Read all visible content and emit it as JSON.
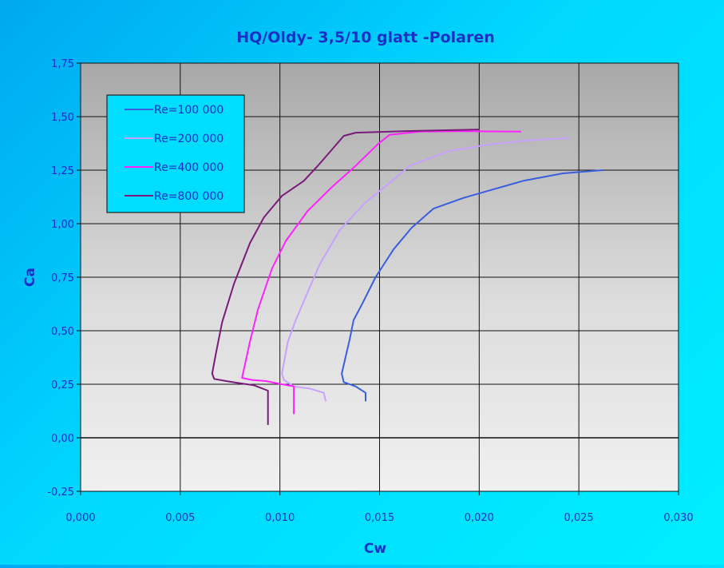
{
  "chart_data": {
    "type": "line",
    "title": "HQ/Oldy- 3,5/10 glatt -Polaren",
    "xlabel": "Cw",
    "ylabel": "Ca",
    "xlim": [
      0.0,
      0.03
    ],
    "ylim": [
      -0.25,
      1.75
    ],
    "x_ticks": [
      "0,000",
      "0,005",
      "0,010",
      "0,015",
      "0,020",
      "0,025",
      "0,030"
    ],
    "y_ticks": [
      "-0,25",
      "0,00",
      "0,25",
      "0,50",
      "0,75",
      "1,00",
      "1,25",
      "1,50",
      "1,75"
    ],
    "grid": true,
    "legend_position": "top-left",
    "series": [
      {
        "name": "Re=100 000",
        "color": "#3a5ee0",
        "points": [
          [
            0.0143,
            0.17
          ],
          [
            0.0143,
            0.21
          ],
          [
            0.0138,
            0.24
          ],
          [
            0.0132,
            0.26
          ],
          [
            0.0131,
            0.3
          ],
          [
            0.0133,
            0.38
          ],
          [
            0.0135,
            0.46
          ],
          [
            0.0137,
            0.55
          ],
          [
            0.0141,
            0.62
          ],
          [
            0.0148,
            0.75
          ],
          [
            0.0157,
            0.88
          ],
          [
            0.0166,
            0.98
          ],
          [
            0.0177,
            1.07
          ],
          [
            0.0192,
            1.12
          ],
          [
            0.0207,
            1.16
          ],
          [
            0.0222,
            1.2
          ],
          [
            0.0242,
            1.235
          ],
          [
            0.0262,
            1.25
          ]
        ]
      },
      {
        "name": "Re=200 000",
        "color": "#c8a0ff",
        "points": [
          [
            0.0123,
            0.17
          ],
          [
            0.0122,
            0.21
          ],
          [
            0.0115,
            0.23
          ],
          [
            0.0107,
            0.24
          ],
          [
            0.0102,
            0.27
          ],
          [
            0.0101,
            0.3
          ],
          [
            0.0104,
            0.45
          ],
          [
            0.0108,
            0.55
          ],
          [
            0.0113,
            0.66
          ],
          [
            0.012,
            0.81
          ],
          [
            0.013,
            0.97
          ],
          [
            0.0143,
            1.1
          ],
          [
            0.0155,
            1.19
          ],
          [
            0.0165,
            1.27
          ],
          [
            0.0185,
            1.34
          ],
          [
            0.0205,
            1.37
          ],
          [
            0.0225,
            1.39
          ],
          [
            0.0245,
            1.4
          ]
        ]
      },
      {
        "name": "Re=400 000",
        "color": "#ff22ff",
        "points": [
          [
            0.0107,
            0.11
          ],
          [
            0.0107,
            0.24
          ],
          [
            0.0101,
            0.25
          ],
          [
            0.0093,
            0.265
          ],
          [
            0.0086,
            0.27
          ],
          [
            0.0081,
            0.28
          ],
          [
            0.0085,
            0.45
          ],
          [
            0.0089,
            0.6
          ],
          [
            0.0096,
            0.79
          ],
          [
            0.0103,
            0.92
          ],
          [
            0.0114,
            1.06
          ],
          [
            0.0126,
            1.17
          ],
          [
            0.0138,
            1.27
          ],
          [
            0.0149,
            1.37
          ],
          [
            0.0155,
            1.415
          ],
          [
            0.017,
            1.43
          ],
          [
            0.019,
            1.432
          ],
          [
            0.0221,
            1.43
          ]
        ]
      },
      {
        "name": "Re=800 000",
        "color": "#7a1a7a",
        "points": [
          [
            0.0094,
            0.06
          ],
          [
            0.0094,
            0.22
          ],
          [
            0.0087,
            0.245
          ],
          [
            0.008,
            0.255
          ],
          [
            0.0073,
            0.265
          ],
          [
            0.0067,
            0.275
          ],
          [
            0.0066,
            0.3
          ],
          [
            0.0068,
            0.4
          ],
          [
            0.0071,
            0.54
          ],
          [
            0.0077,
            0.72
          ],
          [
            0.0085,
            0.91
          ],
          [
            0.0092,
            1.03
          ],
          [
            0.0101,
            1.13
          ],
          [
            0.0112,
            1.2
          ],
          [
            0.0119,
            1.27
          ],
          [
            0.0126,
            1.345
          ],
          [
            0.0132,
            1.41
          ],
          [
            0.0138,
            1.425
          ],
          [
            0.0165,
            1.433
          ],
          [
            0.02,
            1.44
          ]
        ]
      }
    ]
  },
  "colors": {
    "plot_background_top": "#a8a8a8",
    "plot_background_bottom": "#f0f0f0",
    "axis_text": "#1a2fc8",
    "legend_background": "#00ddff"
  }
}
